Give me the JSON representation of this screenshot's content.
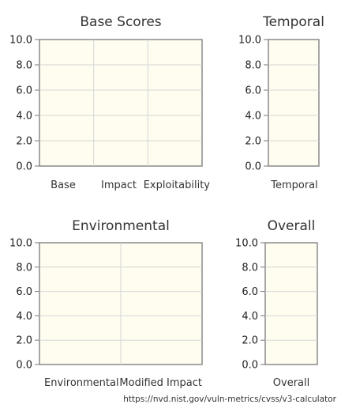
{
  "chart_data": [
    {
      "type": "bar",
      "title": "Base Scores",
      "categories": [
        "Base",
        "Impact",
        "Exploitability"
      ],
      "values": [
        0,
        0,
        0
      ],
      "ylim": [
        0,
        10
      ],
      "yticks": [
        "10.0",
        "8.0",
        "6.0",
        "4.0",
        "2.0",
        "0.0"
      ],
      "grid": true
    },
    {
      "type": "bar",
      "title": "Temporal",
      "categories": [
        "Temporal"
      ],
      "values": [
        0
      ],
      "ylim": [
        0,
        10
      ],
      "yticks": [
        "10.0",
        "8.0",
        "6.0",
        "4.0",
        "2.0",
        "0.0"
      ],
      "grid": true
    },
    {
      "type": "bar",
      "title": "Environmental",
      "categories": [
        "Environmental",
        "Modified Impact"
      ],
      "values": [
        0,
        0
      ],
      "ylim": [
        0,
        10
      ],
      "yticks": [
        "10.0",
        "8.0",
        "6.0",
        "4.0",
        "2.0",
        "0.0"
      ],
      "grid": true
    },
    {
      "type": "bar",
      "title": "Overall",
      "categories": [
        "Overall"
      ],
      "values": [
        0
      ],
      "ylim": [
        0,
        10
      ],
      "yticks": [
        "10.0",
        "8.0",
        "6.0",
        "4.0",
        "2.0",
        "0.0"
      ],
      "grid": true
    }
  ],
  "footer": {
    "url": "https://nvd.nist.gov/vuln-metrics/cvss/v3-calculator"
  },
  "colors": {
    "plot_bg": "#fffdf0",
    "border": "#8a8a8a",
    "grid": "#d6d6d6"
  }
}
